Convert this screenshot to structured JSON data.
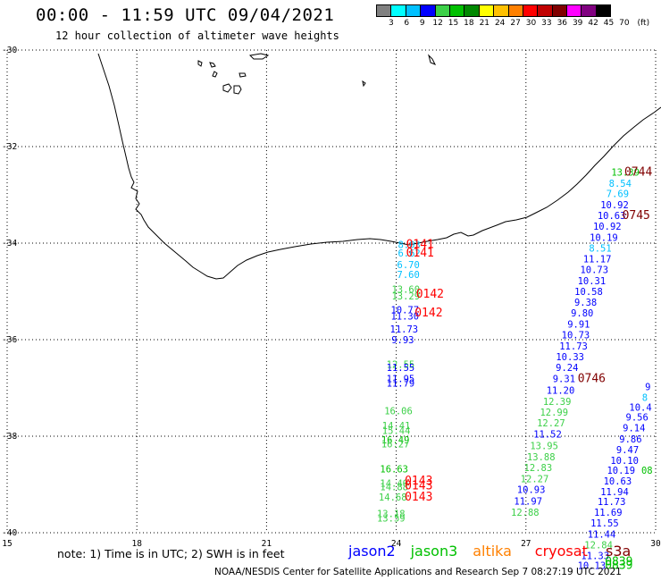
{
  "header": {
    "title": "00:00 - 11:59 UTC 09/04/2021",
    "subtitle": "12 hour collection of altimeter wave heights"
  },
  "color_scale": {
    "colors": [
      "#808080",
      "#00ffff",
      "#00c0ff",
      "#0000ff",
      "#3cd048",
      "#00c000",
      "#008800",
      "#ffff00",
      "#ffc000",
      "#ff8000",
      "#ff0000",
      "#c00000",
      "#800000",
      "#ff00ff",
      "#800080",
      "#000000"
    ],
    "labels": [
      "3",
      "6",
      "9",
      "12",
      "15",
      "18",
      "21",
      "24",
      "27",
      "30",
      "33",
      "36",
      "39",
      "42",
      "45",
      "70",
      "(ft)"
    ]
  },
  "chart_data": {
    "type": "map",
    "xlim": [
      15,
      30
    ],
    "ylim": [
      -40,
      -30
    ],
    "x_ticks": [
      "15",
      "18",
      "21",
      "24",
      "27",
      "30"
    ],
    "y_ticks": [
      "-30",
      "-32",
      "-34",
      "-36",
      "-38",
      "-40"
    ],
    "grid": true,
    "observations": [
      {
        "lon": 29.3,
        "lat": -32.6,
        "text": "13.39",
        "color": "#00c000"
      },
      {
        "lon": 29.6,
        "lat": -32.6,
        "text": "0744",
        "color": "#800000"
      },
      {
        "lon": 29.18,
        "lat": -32.83,
        "text": "8.54",
        "color": "#00c0ff"
      },
      {
        "lon": 29.12,
        "lat": -33.05,
        "text": "7.69",
        "color": "#00c0ff"
      },
      {
        "lon": 29.05,
        "lat": -33.28,
        "text": "10.92",
        "color": "#0000ff"
      },
      {
        "lon": 28.98,
        "lat": -33.5,
        "text": "10.63",
        "color": "#0000ff"
      },
      {
        "lon": 29.55,
        "lat": -33.5,
        "text": "0745",
        "color": "#800000"
      },
      {
        "lon": 28.88,
        "lat": -33.72,
        "text": "10.92",
        "color": "#0000ff"
      },
      {
        "lon": 28.8,
        "lat": -33.95,
        "text": "10.19",
        "color": "#0000ff"
      },
      {
        "lon": 28.72,
        "lat": -34.18,
        "text": "8.51",
        "color": "#00c0ff"
      },
      {
        "lon": 28.65,
        "lat": -34.4,
        "text": "11.17",
        "color": "#0000ff"
      },
      {
        "lon": 28.58,
        "lat": -34.62,
        "text": "10.73",
        "color": "#0000ff"
      },
      {
        "lon": 28.52,
        "lat": -34.85,
        "text": "10.31",
        "color": "#0000ff"
      },
      {
        "lon": 28.45,
        "lat": -35.07,
        "text": "10.58",
        "color": "#0000ff"
      },
      {
        "lon": 28.38,
        "lat": -35.3,
        "text": "9.38",
        "color": "#0000ff"
      },
      {
        "lon": 28.3,
        "lat": -35.52,
        "text": "9.80",
        "color": "#0000ff"
      },
      {
        "lon": 28.22,
        "lat": -35.75,
        "text": "9.91",
        "color": "#0000ff"
      },
      {
        "lon": 28.15,
        "lat": -35.97,
        "text": "10.73",
        "color": "#0000ff"
      },
      {
        "lon": 28.1,
        "lat": -36.2,
        "text": "11.73",
        "color": "#0000ff"
      },
      {
        "lon": 28.02,
        "lat": -36.43,
        "text": "10.33",
        "color": "#0000ff"
      },
      {
        "lon": 27.95,
        "lat": -36.65,
        "text": "9.24",
        "color": "#0000ff"
      },
      {
        "lon": 27.88,
        "lat": -36.88,
        "text": "9.31",
        "color": "#0000ff"
      },
      {
        "lon": 28.52,
        "lat": -36.88,
        "text": "0746",
        "color": "#800000"
      },
      {
        "lon": 27.8,
        "lat": -37.12,
        "text": "11.20",
        "color": "#0000ff"
      },
      {
        "lon": 27.72,
        "lat": -37.35,
        "text": "12.39",
        "color": "#3cd048"
      },
      {
        "lon": 27.65,
        "lat": -37.57,
        "text": "12.99",
        "color": "#3cd048"
      },
      {
        "lon": 27.58,
        "lat": -37.8,
        "text": "12.27",
        "color": "#3cd048"
      },
      {
        "lon": 27.5,
        "lat": -38.03,
        "text": "11.52",
        "color": "#0000ff"
      },
      {
        "lon": 27.42,
        "lat": -38.27,
        "text": "13.95",
        "color": "#3cd048"
      },
      {
        "lon": 27.35,
        "lat": -38.5,
        "text": "13.88",
        "color": "#3cd048"
      },
      {
        "lon": 27.28,
        "lat": -38.72,
        "text": "12.83",
        "color": "#3cd048"
      },
      {
        "lon": 27.2,
        "lat": -38.95,
        "text": "12.27",
        "color": "#3cd048"
      },
      {
        "lon": 27.12,
        "lat": -39.18,
        "text": "10.93",
        "color": "#0000ff"
      },
      {
        "lon": 27.05,
        "lat": -39.42,
        "text": "11.97",
        "color": "#0000ff"
      },
      {
        "lon": 26.98,
        "lat": -39.65,
        "text": "12.88",
        "color": "#3cd048"
      },
      {
        "lon": 24.3,
        "lat": -34.1,
        "text": "8.03",
        "color": "#00c0ff"
      },
      {
        "lon": 24.3,
        "lat": -34.28,
        "text": "6.62",
        "color": "#00c0ff"
      },
      {
        "lon": 24.55,
        "lat": -34.1,
        "text": "0141",
        "color": "#ff0000"
      },
      {
        "lon": 24.55,
        "lat": -34.28,
        "text": "0141",
        "color": "#ff0000"
      },
      {
        "lon": 24.28,
        "lat": -34.52,
        "text": "6.70",
        "color": "#00c0ff"
      },
      {
        "lon": 24.28,
        "lat": -34.72,
        "text": "7.60",
        "color": "#00c0ff"
      },
      {
        "lon": 24.22,
        "lat": -35.03,
        "text": "13.60",
        "color": "#3cd048"
      },
      {
        "lon": 24.22,
        "lat": -35.17,
        "text": "13.29",
        "color": "#3cd048"
      },
      {
        "lon": 24.78,
        "lat": -35.13,
        "text": "0142",
        "color": "#ff0000"
      },
      {
        "lon": 24.2,
        "lat": -35.45,
        "text": "10.77",
        "color": "#0000ff"
      },
      {
        "lon": 24.2,
        "lat": -35.58,
        "text": "11.30",
        "color": "#0000ff"
      },
      {
        "lon": 24.75,
        "lat": -35.52,
        "text": "0142",
        "color": "#ff0000"
      },
      {
        "lon": 24.18,
        "lat": -35.85,
        "text": "11.73",
        "color": "#0000ff"
      },
      {
        "lon": 24.15,
        "lat": -36.07,
        "text": "9.93",
        "color": "#0000ff"
      },
      {
        "lon": 24.1,
        "lat": -36.58,
        "text": "12.55",
        "color": "#3cd048"
      },
      {
        "lon": 24.1,
        "lat": -36.65,
        "text": "11.55",
        "color": "#0000ff"
      },
      {
        "lon": 24.1,
        "lat": -36.88,
        "text": "11.95",
        "color": "#0000ff"
      },
      {
        "lon": 24.1,
        "lat": -36.97,
        "text": "11.79",
        "color": "#0000ff"
      },
      {
        "lon": 24.05,
        "lat": -37.55,
        "text": "16.06",
        "color": "#3cd048"
      },
      {
        "lon": 24.0,
        "lat": -37.85,
        "text": "14.41",
        "color": "#3cd048"
      },
      {
        "lon": 24.0,
        "lat": -37.95,
        "text": "15.44",
        "color": "#3cd048"
      },
      {
        "lon": 23.98,
        "lat": -38.15,
        "text": "16.49",
        "color": "#00c000"
      },
      {
        "lon": 23.98,
        "lat": -38.23,
        "text": "16.27",
        "color": "#3cd048"
      },
      {
        "lon": 23.95,
        "lat": -38.75,
        "text": "16.63",
        "color": "#00c000"
      },
      {
        "lon": 23.95,
        "lat": -39.05,
        "text": "14.40",
        "color": "#3cd048"
      },
      {
        "lon": 23.95,
        "lat": -39.12,
        "text": "14.88",
        "color": "#3cd048"
      },
      {
        "lon": 24.52,
        "lat": -39.0,
        "text": "0143",
        "color": "#ff0000"
      },
      {
        "lon": 24.52,
        "lat": -39.1,
        "text": "0143",
        "color": "#ff0000"
      },
      {
        "lon": 23.92,
        "lat": -39.33,
        "text": "14.68",
        "color": "#3cd048"
      },
      {
        "lon": 24.52,
        "lat": -39.33,
        "text": "0143",
        "color": "#ff0000"
      },
      {
        "lon": 23.88,
        "lat": -39.68,
        "text": "13.18",
        "color": "#3cd048"
      },
      {
        "lon": 23.88,
        "lat": -39.77,
        "text": "13.59",
        "color": "#3cd048"
      },
      {
        "lon": 29.82,
        "lat": -37.05,
        "text": "9",
        "color": "#0000ff"
      },
      {
        "lon": 29.75,
        "lat": -37.27,
        "text": "8",
        "color": "#00c0ff"
      },
      {
        "lon": 29.65,
        "lat": -37.47,
        "text": "10.4",
        "color": "#0000ff"
      },
      {
        "lon": 29.57,
        "lat": -37.68,
        "text": "9.56",
        "color": "#0000ff"
      },
      {
        "lon": 29.5,
        "lat": -37.9,
        "text": "9.14",
        "color": "#0000ff"
      },
      {
        "lon": 29.42,
        "lat": -38.13,
        "text": "9.86",
        "color": "#0000ff"
      },
      {
        "lon": 29.35,
        "lat": -38.35,
        "text": "9.47",
        "color": "#0000ff"
      },
      {
        "lon": 29.28,
        "lat": -38.57,
        "text": "10.10",
        "color": "#0000ff"
      },
      {
        "lon": 29.2,
        "lat": -38.78,
        "text": "10.19",
        "color": "#0000ff"
      },
      {
        "lon": 29.8,
        "lat": -38.78,
        "text": "08",
        "color": "#00c000"
      },
      {
        "lon": 29.12,
        "lat": -39.0,
        "text": "10.63",
        "color": "#0000ff"
      },
      {
        "lon": 29.05,
        "lat": -39.22,
        "text": "11.94",
        "color": "#0000ff"
      },
      {
        "lon": 28.98,
        "lat": -39.43,
        "text": "11.73",
        "color": "#0000ff"
      },
      {
        "lon": 28.9,
        "lat": -39.65,
        "text": "11.69",
        "color": "#0000ff"
      },
      {
        "lon": 28.82,
        "lat": -39.87,
        "text": "11.55",
        "color": "#0000ff"
      },
      {
        "lon": 28.75,
        "lat": -40.1,
        "text": "11.44",
        "color": "#0000ff"
      },
      {
        "lon": 28.68,
        "lat": -40.32,
        "text": "12.84",
        "color": "#3cd048"
      },
      {
        "lon": 28.6,
        "lat": -40.55,
        "text": "11.33",
        "color": "#0000ff"
      },
      {
        "lon": 28.52,
        "lat": -40.75,
        "text": "10.13",
        "color": "#0000ff"
      },
      {
        "lon": 29.15,
        "lat": -40.75,
        "text": "0839",
        "color": "#00c000"
      },
      {
        "lon": 29.15,
        "lat": -40.68,
        "text": "0839",
        "color": "#00c000"
      }
    ]
  },
  "note": "note: 1) Time is in UTC; 2) SWH is in feet",
  "legend": [
    {
      "label": "jason2",
      "color": "#0000ff"
    },
    {
      "label": "jason3",
      "color": "#00c000"
    },
    {
      "label": "altika",
      "color": "#ff8000"
    },
    {
      "label": "cryosat",
      "color": "#ff0000"
    },
    {
      "label": "s3a",
      "color": "#800000"
    }
  ],
  "footer": "NOAA/NESDIS Center for Satellite Applications and Research   Sep  7 08:27:19 UTC 2021"
}
